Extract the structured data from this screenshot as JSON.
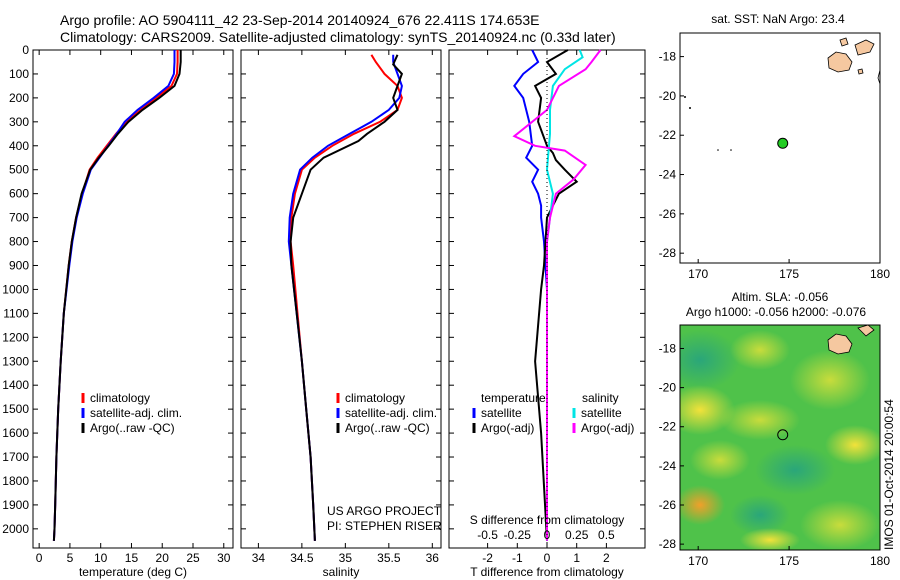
{
  "header": {
    "line1": "Argo profile: AO 5904111_42 23-Sep-2014 20140924_676 22.411S 174.653E",
    "line2": "Climatology: CARS2009. Satellite-adjusted climatology: synTS_20140924.nc (0.33d later)"
  },
  "credits": {
    "line1": "US ARGO PROJECT",
    "line2": "PI: STEPHEN RISER"
  },
  "side_label": "IMOS 01-Oct-2014 20:00:54",
  "colors": {
    "climatology": "#ff0000",
    "satellite": "#0000ff",
    "argo": "#000000",
    "salinity_satellite": "#00e5e5",
    "salinity_argo": "#ff00ff",
    "marker": "#22cc22",
    "land": "#f5c8a0"
  },
  "chart_data": [
    {
      "type": "line",
      "panel": "temperature",
      "xlabel": "temperature (deg C)",
      "ylabel": "",
      "xlim": [
        -1,
        31.5
      ],
      "ylim": [
        2080,
        0
      ],
      "xticks": [
        0,
        5,
        10,
        15,
        20,
        25,
        30
      ],
      "yticks": [
        0,
        100,
        200,
        300,
        400,
        500,
        600,
        700,
        800,
        900,
        1000,
        1100,
        1200,
        1300,
        1400,
        1500,
        1600,
        1700,
        1800,
        1900,
        2000
      ],
      "legend": [
        "climatology",
        "satellite-adj. clim.",
        "Argo(..raw -QC)"
      ],
      "series": [
        {
          "name": "climatology",
          "color": "#ff0000",
          "x": [
            22.5,
            22.5,
            22.4,
            21.5,
            19.0,
            16.5,
            14.2,
            12.5,
            11.0,
            9.5,
            8.2,
            7.0,
            6.0,
            5.3,
            4.8,
            4.0,
            3.5,
            3.1,
            2.8,
            2.6,
            2.5,
            2.4
          ],
          "y": [
            0,
            50,
            100,
            150,
            200,
            250,
            300,
            350,
            400,
            450,
            500,
            600,
            700,
            800,
            900,
            1100,
            1300,
            1500,
            1700,
            1900,
            2000,
            2050
          ]
        },
        {
          "name": "satellite-adj. clim.",
          "color": "#0000ff",
          "x": [
            22.0,
            22.0,
            21.9,
            21.0,
            18.6,
            16.0,
            13.9,
            12.6,
            11.2,
            9.8,
            8.4,
            7.1,
            6.1,
            5.4,
            4.9,
            4.0,
            3.5,
            3.1,
            2.8,
            2.6,
            2.5,
            2.4
          ],
          "y": [
            0,
            50,
            100,
            150,
            200,
            250,
            300,
            350,
            400,
            450,
            500,
            600,
            700,
            800,
            900,
            1100,
            1300,
            1500,
            1700,
            1900,
            2000,
            2050
          ]
        },
        {
          "name": "Argo(..raw -QC)",
          "color": "#000000",
          "x": [
            23.0,
            23.0,
            22.8,
            22.0,
            19.5,
            16.8,
            14.5,
            12.8,
            11.3,
            9.7,
            8.3,
            6.9,
            6.0,
            5.3,
            4.8,
            4.0,
            3.5,
            3.1,
            2.8,
            2.6,
            2.5,
            2.4
          ],
          "y": [
            0,
            50,
            100,
            150,
            200,
            250,
            300,
            350,
            400,
            450,
            500,
            600,
            700,
            800,
            900,
            1100,
            1300,
            1500,
            1700,
            1900,
            2000,
            2050
          ]
        }
      ]
    },
    {
      "type": "line",
      "panel": "salinity",
      "xlabel": "salinity",
      "ylabel": "",
      "xlim": [
        33.8,
        36.1
      ],
      "ylim": [
        2080,
        0
      ],
      "xticks": [
        34,
        34.5,
        35,
        35.5,
        36
      ],
      "xticklabels": [
        "34",
        "34.5",
        "35",
        "35.5",
        "36"
      ],
      "legend": [
        "climatology",
        "satellite-adj. clim.",
        "Argo(..raw -QC)"
      ],
      "series": [
        {
          "name": "climatology",
          "color": "#ff0000",
          "x": [
            35.3,
            35.35,
            35.45,
            35.6,
            35.65,
            35.6,
            35.4,
            35.1,
            34.85,
            34.65,
            34.5,
            34.42,
            34.38,
            34.37,
            34.4,
            34.45,
            34.5,
            34.55,
            34.6,
            34.63,
            34.65
          ],
          "y": [
            20,
            50,
            100,
            150,
            200,
            250,
            300,
            350,
            400,
            450,
            500,
            600,
            700,
            800,
            900,
            1100,
            1300,
            1500,
            1700,
            1900,
            2050
          ]
        },
        {
          "name": "satellite-adj. clim.",
          "color": "#0000ff",
          "x": [
            35.55,
            35.55,
            35.6,
            35.65,
            35.62,
            35.5,
            35.3,
            35.05,
            34.8,
            34.62,
            34.48,
            34.4,
            34.36,
            34.35,
            34.38,
            34.44,
            34.5,
            34.55,
            34.6,
            34.63,
            34.65
          ],
          "y": [
            20,
            50,
            100,
            150,
            200,
            250,
            300,
            350,
            400,
            450,
            500,
            600,
            700,
            800,
            900,
            1100,
            1300,
            1500,
            1700,
            1900,
            2050
          ]
        },
        {
          "name": "Argo(..raw -QC)",
          "color": "#000000",
          "x": [
            35.6,
            35.55,
            35.65,
            35.6,
            35.55,
            35.6,
            35.45,
            35.25,
            35.15,
            34.75,
            34.6,
            34.5,
            34.4,
            34.37,
            34.38,
            34.44,
            34.5,
            34.55,
            34.6,
            34.63,
            34.65
          ],
          "y": [
            20,
            60,
            100,
            150,
            200,
            250,
            300,
            350,
            380,
            450,
            500,
            600,
            700,
            800,
            900,
            1100,
            1300,
            1500,
            1700,
            1900,
            2050
          ]
        }
      ]
    },
    {
      "type": "line",
      "panel": "differences",
      "xlabel": "T difference from climatology",
      "xlabel2": "S difference from climatology",
      "ylabel": "",
      "xlim": [
        -3.3,
        3.3
      ],
      "ylim": [
        2080,
        0
      ],
      "xticks": [
        -2,
        -1,
        0,
        1,
        2
      ],
      "xticks_s": [
        -0.5,
        -0.25,
        0,
        0.25,
        0.5
      ],
      "xticklabels_s": [
        "-0.5",
        "-0.25",
        "0",
        "0.25",
        "0.5"
      ],
      "legend_groups": {
        "temperature": "temperature",
        "salinity": "salinity"
      },
      "legend": [
        "satellite",
        "Argo(-adj)",
        "satellite",
        "Argo(-adj)"
      ],
      "series": [
        {
          "name": "satellite",
          "group": "temperature",
          "color": "#0000ff",
          "x": [
            -0.5,
            -0.3,
            -0.8,
            -1.1,
            -0.8,
            -0.6,
            -0.5,
            -0.7,
            -0.3,
            -0.5,
            -0.3,
            -0.2,
            -0.2,
            -0.1,
            0,
            0,
            0
          ],
          "y": [
            0,
            50,
            100,
            150,
            200,
            300,
            400,
            450,
            500,
            550,
            600,
            650,
            700,
            800,
            1000,
            1500,
            2050
          ]
        },
        {
          "name": "Argo(-adj)",
          "group": "temperature",
          "color": "#000000",
          "x": [
            0.7,
            0,
            0.3,
            -0.4,
            -0.2,
            -0.3,
            0,
            0.2,
            0.3,
            0.6,
            1,
            0.4,
            0.2,
            0,
            -0.1,
            -0.2,
            -0.4,
            -0.2,
            0
          ],
          "y": [
            0,
            50,
            100,
            150,
            200,
            300,
            400,
            430,
            460,
            500,
            550,
            600,
            650,
            700,
            900,
            1000,
            1300,
            1600,
            2050
          ]
        },
        {
          "name": "satellite",
          "group": "salinity",
          "color": "#00e5e5",
          "x": [
            1.1,
            1.2,
            0.6,
            0.2,
            0.1,
            0.1,
            0,
            0.2,
            0.1,
            0,
            0,
            0,
            0
          ],
          "y": [
            0,
            30,
            80,
            150,
            250,
            350,
            500,
            600,
            700,
            800,
            1000,
            1500,
            2050
          ]
        },
        {
          "name": "Argo(-adj)",
          "group": "salinity",
          "color": "#ff00ff",
          "x": [
            1.8,
            1.5,
            1.3,
            0.4,
            0,
            -1.1,
            -0.4,
            0.6,
            1.3,
            0.9,
            0.3,
            0.1,
            0,
            0,
            0
          ],
          "y": [
            0,
            50,
            80,
            150,
            250,
            360,
            400,
            420,
            480,
            540,
            600,
            700,
            800,
            1000,
            2050
          ]
        }
      ]
    },
    {
      "type": "scatter",
      "panel": "sst-map",
      "title": "sat. SST: NaN Argo: 23.4",
      "xlim": [
        169,
        180
      ],
      "ylim": [
        -28.5,
        -16.8
      ],
      "xticks": [
        170,
        175,
        180
      ],
      "yticks": [
        -18,
        -20,
        -22,
        -24,
        -26,
        -28
      ],
      "points": [
        {
          "x": 174.65,
          "y": -22.41
        }
      ]
    },
    {
      "type": "heatmap",
      "panel": "sla-map",
      "title": "Altim. SLA: -0.056",
      "subtitle": "Argo h1000: -0.056 h2000: -0.076",
      "xlim": [
        169,
        180
      ],
      "ylim": [
        -28.3,
        -16.8
      ],
      "xticks": [
        170,
        175,
        180
      ],
      "yticks": [
        -18,
        -20,
        -22,
        -24,
        -26,
        -28
      ],
      "points": [
        {
          "x": 174.65,
          "y": -22.41
        }
      ]
    }
  ]
}
